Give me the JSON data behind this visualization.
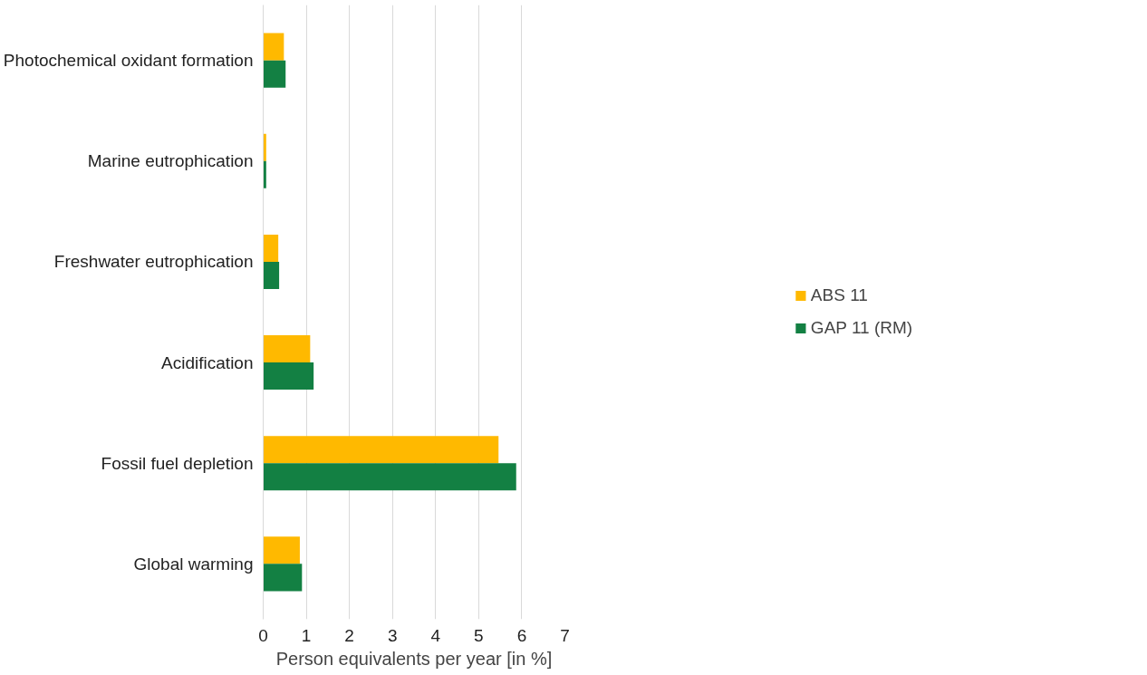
{
  "chart_data": {
    "type": "bar",
    "orientation": "horizontal",
    "xlabel": "Person equivalents per year [in %]",
    "categories": [
      "Photochemical oxidant formation",
      "Marine eutrophication",
      "Freshwater eutrophication",
      "Acidification",
      "Fossil fuel depletion",
      "Global warming"
    ],
    "series": [
      {
        "name": "ABS 11",
        "color": "#ffb900",
        "values": [
          0.48,
          0.07,
          0.35,
          1.09,
          5.46,
          0.85
        ]
      },
      {
        "name": "GAP 11 (RM)",
        "color": "#138043",
        "values": [
          0.52,
          0.07,
          0.37,
          1.17,
          5.87,
          0.9
        ]
      }
    ],
    "xlim": [
      0,
      7
    ],
    "xticks": [
      0,
      1,
      2,
      3,
      4,
      5,
      6,
      7
    ],
    "grid": "x",
    "legend": "right"
  }
}
